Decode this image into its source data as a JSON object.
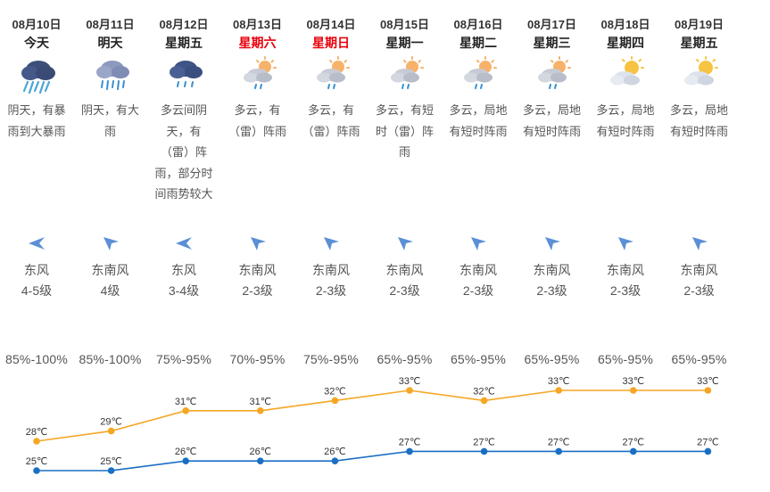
{
  "days": [
    {
      "date": "08月10日",
      "day": "今天",
      "weekend": false,
      "icon": "heavy-rain-cloud-icon",
      "desc": "阴天，有暴雨到大暴雨",
      "wind_dir": "东风",
      "wind_level": "4-5级",
      "wind_icon": "wind-arrow-west-icon",
      "humidity": "85%-100%"
    },
    {
      "date": "08月11日",
      "day": "明天",
      "weekend": false,
      "icon": "rain-cloud-icon",
      "desc": "阴天，有大雨",
      "wind_dir": "东南风",
      "wind_level": "4级",
      "wind_icon": "wind-arrow-northwest-icon",
      "humidity": "85%-100%"
    },
    {
      "date": "08月12日",
      "day": "星期五",
      "weekend": false,
      "icon": "light-rain-cloud-icon",
      "desc": "多云间阴天，有（雷）阵雨，部分时间雨势较大",
      "wind_dir": "东风",
      "wind_level": "3-4级",
      "wind_icon": "wind-arrow-west-icon",
      "humidity": "75%-95%"
    },
    {
      "date": "08月13日",
      "day": "星期六",
      "weekend": true,
      "icon": "sun-cloud-rain-icon",
      "desc": "多云，有（雷）阵雨",
      "wind_dir": "东南风",
      "wind_level": "2-3级",
      "wind_icon": "wind-arrow-northwest-icon",
      "humidity": "70%-95%"
    },
    {
      "date": "08月14日",
      "day": "星期日",
      "weekend": true,
      "icon": "sun-cloud-rain-icon",
      "desc": "多云，有（雷）阵雨",
      "wind_dir": "东南风",
      "wind_level": "2-3级",
      "wind_icon": "wind-arrow-northwest-icon",
      "humidity": "75%-95%"
    },
    {
      "date": "08月15日",
      "day": "星期一",
      "weekend": false,
      "icon": "sun-cloud-rain-icon",
      "desc": "多云，有短时（雷）阵雨",
      "wind_dir": "东南风",
      "wind_level": "2-3级",
      "wind_icon": "wind-arrow-northwest-icon",
      "humidity": "65%-95%"
    },
    {
      "date": "08月16日",
      "day": "星期二",
      "weekend": false,
      "icon": "sun-cloud-rain-icon",
      "desc": "多云，局地有短时阵雨",
      "wind_dir": "东南风",
      "wind_level": "2-3级",
      "wind_icon": "wind-arrow-northwest-icon",
      "humidity": "65%-95%"
    },
    {
      "date": "08月17日",
      "day": "星期三",
      "weekend": false,
      "icon": "sun-cloud-rain-icon",
      "desc": "多云，局地有短时阵雨",
      "wind_dir": "东南风",
      "wind_level": "2-3级",
      "wind_icon": "wind-arrow-northwest-icon",
      "humidity": "65%-95%"
    },
    {
      "date": "08月18日",
      "day": "星期四",
      "weekend": false,
      "icon": "sun-cloud-icon",
      "desc": "多云，局地有短时阵雨",
      "wind_dir": "东南风",
      "wind_level": "2-3级",
      "wind_icon": "wind-arrow-northwest-icon",
      "humidity": "65%-95%"
    },
    {
      "date": "08月19日",
      "day": "星期五",
      "weekend": false,
      "icon": "sun-cloud-icon",
      "desc": "多云，局地有短时阵雨",
      "wind_dir": "东南风",
      "wind_level": "2-3级",
      "wind_icon": "wind-arrow-northwest-icon",
      "humidity": "65%-95%"
    }
  ],
  "colors": {
    "high": "#f5a623",
    "low": "#1a6fc4",
    "weekend": "#e8000b",
    "arrow": "#5b8fd6"
  },
  "chart_data": {
    "type": "line",
    "categories": [
      "08月10日",
      "08月11日",
      "08月12日",
      "08月13日",
      "08月14日",
      "08月15日",
      "08月16日",
      "08月17日",
      "08月18日",
      "08月19日"
    ],
    "series": [
      {
        "values": [
          28,
          29,
          31,
          31,
          32,
          33,
          32,
          33,
          33,
          33
        ],
        "labels": [
          "28℃",
          "29℃",
          "31℃",
          "31℃",
          "32℃",
          "33℃",
          "32℃",
          "33℃",
          "33℃",
          "33℃"
        ],
        "color": "#f5a623"
      },
      {
        "values": [
          25,
          25,
          26,
          26,
          26,
          27,
          27,
          27,
          27,
          27
        ],
        "labels": [
          "25℃",
          "25℃",
          "26℃",
          "26℃",
          "26℃",
          "27℃",
          "27℃",
          "27℃",
          "27℃",
          "27℃"
        ],
        "color": "#1a6fc4"
      }
    ],
    "ylim": [
      24,
      34
    ],
    "grid": false
  }
}
